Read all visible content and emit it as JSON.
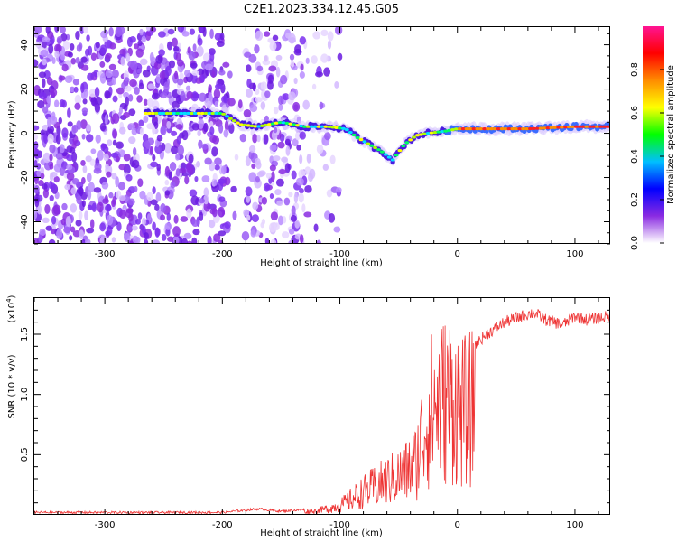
{
  "title": "C2E1.2023.334.12.45.G05",
  "chart_data": [
    {
      "type": "heatmap",
      "panel": "top",
      "xlabel": "Height of straight line (km)",
      "ylabel": "Frequency (Hz)",
      "xlim": [
        -360,
        130
      ],
      "ylim": [
        -50,
        48
      ],
      "x_ticks": [
        -300,
        -200,
        -100,
        0,
        100
      ],
      "y_ticks": [
        -40,
        -20,
        0,
        20,
        40
      ],
      "colorbar": {
        "label": "Normalized spectral amplitude",
        "range": [
          0.0,
          1.0
        ],
        "ticks": [
          "0.0",
          "0.2",
          "0.4",
          "0.6",
          "0.8"
        ],
        "colors": [
          "#ffffff",
          "#8a2be2",
          "#0000ff",
          "#00bfff",
          "#00ff00",
          "#ffff00",
          "#ff8c00",
          "#ff0000",
          "#ff1493"
        ]
      },
      "features": {
        "noise_region_x": [
          -360,
          -130
        ],
        "noise_gap_x": [
          -195,
          -180
        ],
        "signal_trace": {
          "x": [
            -265,
            -240,
            -220,
            -200,
            -185,
            -170,
            -150,
            -130,
            -110,
            -95,
            -85,
            -75,
            -65,
            -55,
            -45,
            -35,
            -25,
            -10,
            0,
            20,
            60,
            100,
            130
          ],
          "y": [
            9,
            9,
            9,
            9,
            4,
            3,
            5,
            3,
            3,
            2,
            -2,
            -5,
            -8,
            -12,
            -5,
            -1,
            0,
            1,
            2,
            2,
            2,
            3,
            3
          ]
        }
      }
    },
    {
      "type": "line",
      "panel": "bottom",
      "xlabel": "Height of straight line (km)",
      "ylabel": "SNR (10 * v/v)",
      "y_multiplier": "(x10",
      "y_multiplier_exp": "4",
      "y_multiplier_close": ")",
      "xlim": [
        -360,
        130
      ],
      "ylim": [
        0,
        1.8
      ],
      "x_ticks": [
        -300,
        -200,
        -100,
        0,
        100
      ],
      "y_ticks": [
        "0.5",
        "1.0",
        "1.5"
      ],
      "series_color": "#ee3333",
      "envelope": {
        "x": [
          -360,
          -200,
          -170,
          -150,
          -120,
          -100,
          -80,
          -60,
          -45,
          -35,
          -28,
          -22,
          -15,
          -5,
          5,
          15,
          25,
          40,
          55,
          65,
          75,
          90,
          100,
          110,
          130
        ],
        "y": [
          0.02,
          0.02,
          0.05,
          0.03,
          0.05,
          0.12,
          0.3,
          0.45,
          0.55,
          0.7,
          1.15,
          1.4,
          1.5,
          1.55,
          1.35,
          1.42,
          1.5,
          1.6,
          1.65,
          1.68,
          1.62,
          1.58,
          1.65,
          1.62,
          1.65
        ]
      }
    }
  ]
}
